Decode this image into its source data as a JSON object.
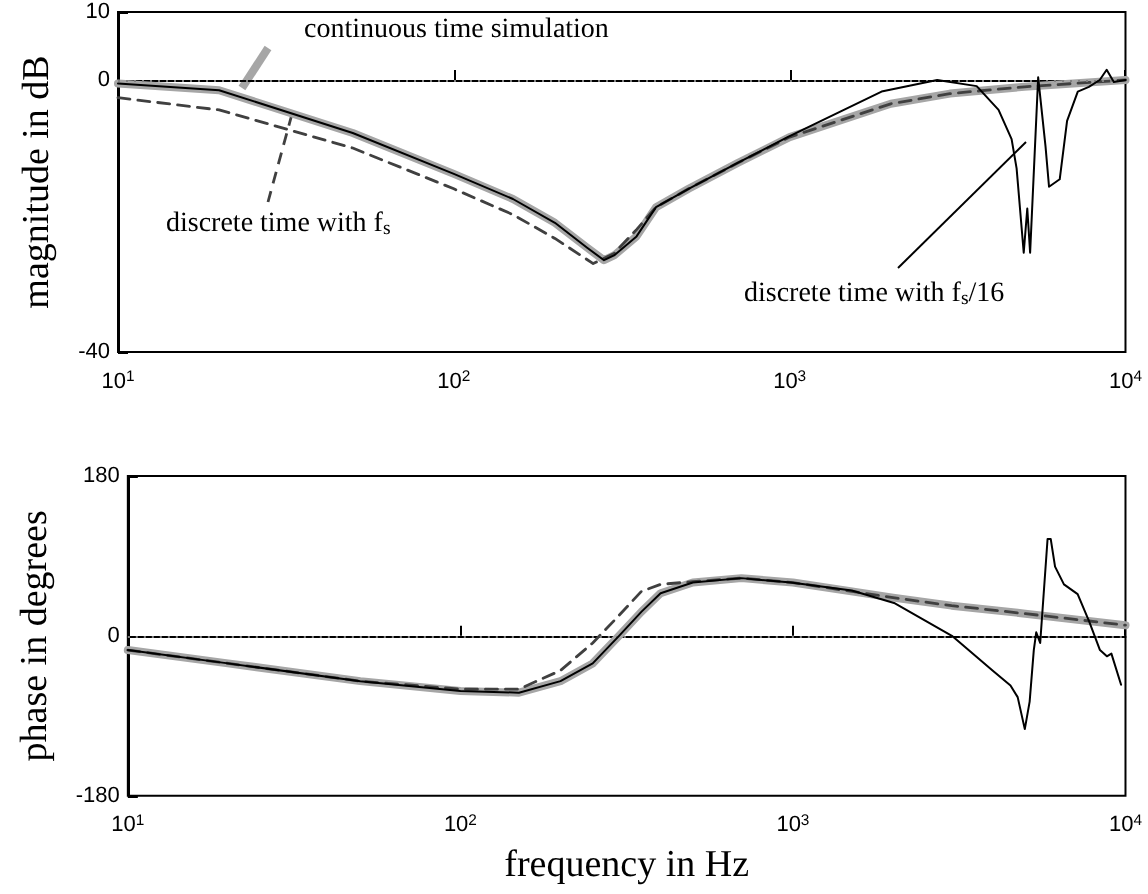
{
  "chart_data": [
    {
      "type": "line",
      "ylabel": "magnitude in dB",
      "log": "x",
      "xlim": [
        10,
        10000
      ],
      "ylim": [
        -40,
        10
      ],
      "xticks": [
        {
          "value": 10,
          "label": "10$^{1}$"
        },
        {
          "value": 100,
          "label": "10$^{2}$"
        },
        {
          "value": 1000,
          "label": "10$^{3}$"
        },
        {
          "value": 10000,
          "label": "10$^{4}$"
        }
      ],
      "yticks": [
        -40,
        0,
        10
      ],
      "grid": false,
      "legend": false,
      "marker": "none",
      "ref_lines": [
        {
          "axis": "y",
          "value": 0,
          "color": "#808080",
          "line_style": "dotted"
        }
      ],
      "series": [
        {
          "name": "continuous time simulation",
          "color": "#a6a6a6",
          "x": [
            10,
            20,
            50,
            100,
            150,
            200,
            250,
            280,
            300,
            350,
            400,
            500,
            700,
            1000,
            2000,
            3000,
            5000,
            10000
          ],
          "values": [
            -0.5,
            -1.5,
            -7.8,
            -13.8,
            -17.5,
            -21,
            -24.7,
            -26.5,
            -25.8,
            -23,
            -18.7,
            -16,
            -12.2,
            -8.4,
            -3.5,
            -2,
            -1,
            0
          ]
        },
        {
          "name": "discrete time with f$_{s}$",
          "color": "#404040",
          "line_style": "dashed",
          "x": [
            10,
            20,
            50,
            100,
            150,
            200,
            260,
            300,
            350,
            400,
            500,
            700,
            1000,
            2000,
            3000,
            5000,
            10000
          ],
          "values": [
            -2.6,
            -4.4,
            -10,
            -16,
            -19.8,
            -23.3,
            -27,
            -25.5,
            -22,
            -18.7,
            -16,
            -12.2,
            -8.4,
            -3.5,
            -2,
            -1,
            0
          ]
        },
        {
          "name": "discrete time with f$_{s}$/16",
          "color": "#000000",
          "x": [
            10,
            20,
            50,
            100,
            150,
            200,
            250,
            280,
            300,
            350,
            400,
            500,
            700,
            986,
            1878,
            2750,
            3605,
            4188,
            4580,
            4740,
            4977,
            5100,
            5200,
            5495,
            5780,
            5920,
            6370,
            6700,
            7210,
            7780,
            8380,
            8790,
            9230,
            10000
          ],
          "values": [
            -0.5,
            -1.5,
            -7.8,
            -13.8,
            -17.5,
            -21,
            -24.7,
            -26.5,
            -25.8,
            -23,
            -18.7,
            -16,
            -12.2,
            -8.4,
            -1.7,
            0,
            -0.9,
            -4.4,
            -8.7,
            -13,
            -25.4,
            -18.9,
            -25.4,
            0.4,
            -9.8,
            -15.7,
            -14.6,
            -6,
            -1.7,
            -1,
            0,
            1.5,
            -0.3,
            0
          ]
        }
      ]
    },
    {
      "type": "line",
      "xlabel": "frequency in Hz",
      "ylabel": "phase in degrees",
      "log": "x",
      "xlim": [
        10,
        10000
      ],
      "ylim": [
        -180,
        180
      ],
      "xticks": [
        {
          "value": 10,
          "label": "10$^{1}$"
        },
        {
          "value": 100,
          "label": "10$^{2}$"
        },
        {
          "value": 1000,
          "label": "10$^{3}$"
        },
        {
          "value": 10000,
          "label": "10$^{4}$"
        }
      ],
      "yticks": [
        -180,
        0,
        180
      ],
      "grid": false,
      "legend": false,
      "marker": "none",
      "ref_lines": [
        {
          "axis": "y",
          "value": 0,
          "color": "#808080",
          "line_style": "dotted"
        }
      ],
      "series": [
        {
          "color": "#a6a6a6",
          "x": [
            10,
            20,
            50,
            100,
            150,
            200,
            250,
            300,
            350,
            400,
            500,
            700,
            1000,
            2000,
            3000,
            5000,
            10000
          ],
          "values": [
            -16,
            -31,
            -51,
            -62,
            -64,
            -51,
            -31,
            0,
            27,
            48,
            60,
            65,
            60,
            43,
            34,
            25,
            12
          ]
        },
        {
          "color": "#404040",
          "line_style": "dashed",
          "x": [
            10,
            20,
            50,
            100,
            150,
            200,
            250,
            300,
            350,
            400,
            500,
            700,
            1000,
            2000,
            3000,
            5000,
            10000
          ],
          "values": [
            -16,
            -31,
            -51,
            -60,
            -60,
            -39,
            -8,
            23,
            50,
            58,
            61,
            65,
            60,
            43,
            34,
            25,
            12
          ]
        },
        {
          "color": "#000000",
          "x": [
            10,
            20,
            50,
            100,
            150,
            200,
            250,
            300,
            350,
            400,
            500,
            700,
            986,
            1503,
            2014,
            3006,
            3983,
            4510,
            4740,
            4980,
            5150,
            5300,
            5390,
            5540,
            5830,
            5960,
            6140,
            6530,
            7180,
            7780,
            8380,
            8790,
            9070,
            9700
          ],
          "values": [
            -16,
            -31,
            -51,
            -62,
            -64,
            -51,
            -31,
            0,
            27,
            48,
            60,
            65,
            60,
            51,
            37,
            0,
            -39,
            -56,
            -69,
            -105,
            -74,
            -16,
            4,
            -8,
            109,
            109,
            78,
            58,
            47,
            16,
            -16,
            -23,
            -20,
            -55
          ]
        }
      ]
    }
  ]
}
